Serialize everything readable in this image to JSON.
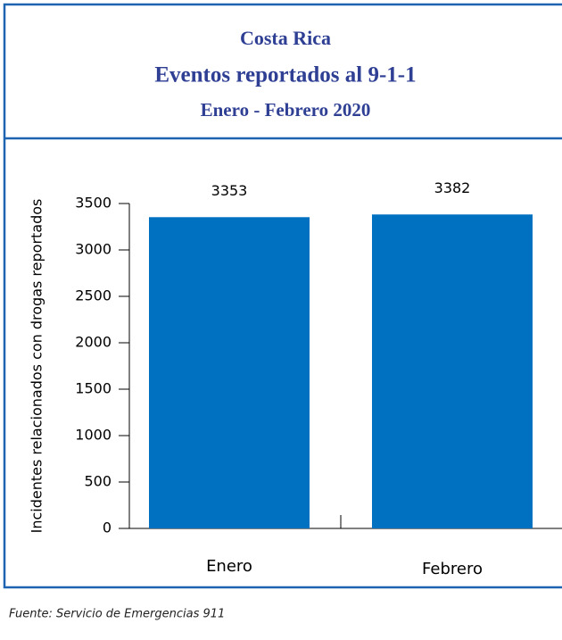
{
  "chart_data": {
    "type": "bar",
    "title": "Costa Rica",
    "subtitle": "Eventos reportados al 9-1-1",
    "period": "Enero - Febrero 2020",
    "y_label": "Incidentes relacionados con drogas reportados",
    "categories": [
      "Enero",
      "Febrero"
    ],
    "values": [
      3353,
      3382
    ],
    "color": "#0070c0",
    "ylim": [
      0,
      3500
    ],
    "yticks": [
      0,
      500,
      1000,
      1500,
      2000,
      2500,
      3000,
      3500
    ],
    "grid": false,
    "source": "Fuente: Servicio de Emergencias 911"
  }
}
